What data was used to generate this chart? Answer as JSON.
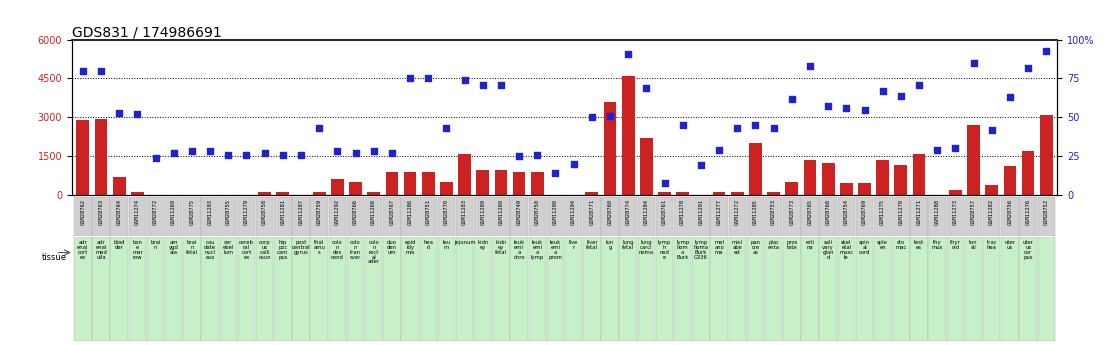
{
  "title": "GDS831 / 174986691",
  "samples": [
    "GSM28762",
    "GSM28763",
    "GSM28764",
    "GSM11274",
    "GSM28772",
    "GSM11269",
    "GSM28775",
    "GSM11293",
    "GSM28755",
    "GSM11279",
    "GSM28758",
    "GSM11281",
    "GSM11287",
    "GSM28759",
    "GSM11292",
    "GSM28766",
    "GSM11268",
    "GSM28767",
    "GSM11286",
    "GSM28751",
    "GSM28770",
    "GSM11283",
    "GSM11289",
    "GSM11280",
    "GSM28749",
    "GSM28750",
    "GSM11290",
    "GSM11294",
    "GSM28771",
    "GSM28760",
    "GSM28774",
    "GSM11284",
    "GSM28761",
    "GSM11278",
    "GSM11291",
    "GSM11277",
    "GSM11272",
    "GSM11285",
    "GSM28753",
    "GSM28773",
    "GSM28765",
    "GSM28768",
    "GSM28754",
    "GSM28769",
    "GSM11275",
    "GSM11270",
    "GSM11271",
    "GSM11288",
    "GSM11273",
    "GSM28757",
    "GSM11282",
    "GSM28756",
    "GSM11276",
    "GSM28752"
  ],
  "counts": [
    2900,
    2950,
    700,
    100,
    10,
    10,
    10,
    10,
    10,
    10,
    100,
    100,
    10,
    100,
    600,
    500,
    100,
    900,
    900,
    900,
    500,
    1600,
    950,
    950,
    900,
    900,
    10,
    10,
    100,
    3600,
    4600,
    2200,
    100,
    100,
    10,
    100,
    100,
    2000,
    100,
    500,
    1350,
    1250,
    450,
    450,
    1350,
    1150,
    1600,
    10,
    200,
    2700,
    400,
    1100,
    1700,
    3100
  ],
  "percentiles": [
    80,
    80,
    53,
    52,
    24,
    27,
    28,
    28,
    26,
    26,
    27,
    26,
    26,
    43,
    28,
    27,
    28,
    27,
    75,
    75,
    43,
    74,
    71,
    71,
    25,
    26,
    14,
    20,
    50,
    51,
    91,
    69,
    8,
    45,
    19,
    29,
    43,
    45,
    43,
    62,
    83,
    57,
    56,
    55,
    67,
    64,
    71,
    29,
    30,
    85,
    42,
    63,
    82,
    93
  ],
  "tissues": [
    "adr\nenal\ncort\nex",
    "adr\nenal\nmed\nulla",
    "blad\nder",
    "bon\ne\nmar\nrow",
    "brai\nn",
    "am\nygd\nala",
    "brai\nn\nfetal",
    "cau\ndate\nnucl\neus",
    "cer\nebel\nlum",
    "cereb\nral\ncort\nex",
    "corp\nus\ncalli\nosun",
    "hip\npoc\ncam\npus",
    "post\ncentral\ngyrus",
    "thal\namu\ns",
    "colo\nn\ndes\ncend",
    "colo\nn\ntran\nsver",
    "colo\nn\nrect\nal\nader",
    "duo\nden\num",
    "epid\nidy\nmis",
    "hea\nrt",
    "leu\nm",
    "jejunum",
    "kidn\ney",
    "kidn\ney\nfetal",
    "leuk\nemi\na\nchro",
    "leuk\nemi\na\nlymp",
    "leuk\nemi\na\nprom",
    "live\nr",
    "liver\nfetal",
    "lun\ng",
    "lung\nfetal",
    "lung\ncarci\nnoma",
    "lymp\nh\nnod\ne",
    "lymp\nhom\na\nBurk",
    "lymp\nhoma\nBurk\nG336",
    "mel\nano\nma",
    "misl\nabe\ned",
    "pan\ncre\nas",
    "plac\nenta",
    "pros\ntate",
    "reti\nna",
    "sali\nvary\nglan\nd",
    "skel\netal\nmusc\nle",
    "spin\nal\ncord",
    "sple\nen",
    "sto\nmac",
    "test\nes",
    "thy\nmus",
    "thyr\noid",
    "ton\nsil",
    "trac\nhea",
    "uter\nus",
    "uter\nus\ncor\npus",
    ""
  ],
  "ylim_left": [
    0,
    6000
  ],
  "ylim_right": [
    0,
    100
  ],
  "yticks_left": [
    0,
    1500,
    3000,
    4500,
    6000
  ],
  "yticks_right": [
    0,
    25,
    50,
    75,
    100
  ],
  "bar_color": "#cc2222",
  "dot_color": "#2222cc",
  "bg_color": "#ffffff",
  "label_bg_gray": "#d0d0d0",
  "label_bg_green": "#c8f0c8",
  "legend_count_color": "#cc2222",
  "legend_pct_color": "#2222cc",
  "title_fontsize": 10,
  "tick_fontsize": 7
}
